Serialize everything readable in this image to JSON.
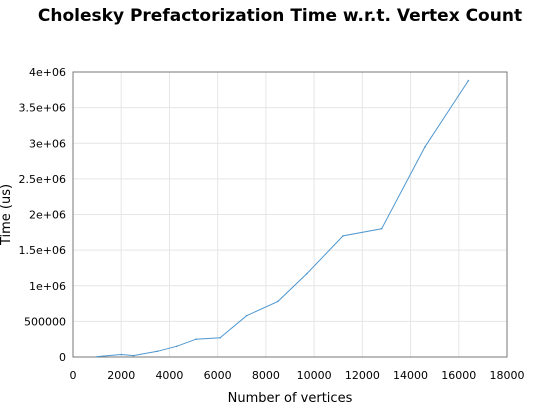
{
  "chart_data": {
    "type": "line",
    "title": "Cholesky Prefactorization Time w.r.t. Vertex Count",
    "xlabel": "Number of vertices",
    "ylabel": "Time (us)",
    "xlim": [
      0,
      18000
    ],
    "ylim": [
      0,
      4000000
    ],
    "x_ticks": [
      "0",
      "2000",
      "4000",
      "6000",
      "8000",
      "10000",
      "12000",
      "14000",
      "16000",
      "18000"
    ],
    "y_ticks": [
      "0",
      "500000",
      "1e+06",
      "1.5e+06",
      "2e+06",
      "2.5e+06",
      "3e+06",
      "3.5e+06",
      "4e+06"
    ],
    "grid": true,
    "series": [
      {
        "name": "",
        "color": "#4f97cf",
        "x": [
          1000,
          2000,
          2500,
          3500,
          4300,
          5100,
          6100,
          7200,
          8500,
          9700,
          11200,
          12800,
          14600,
          16400
        ],
        "y": [
          5000,
          35000,
          20000,
          80000,
          150000,
          250000,
          270000,
          580000,
          780000,
          1170000,
          1700000,
          1800000,
          2950000,
          3880000
        ]
      }
    ]
  }
}
